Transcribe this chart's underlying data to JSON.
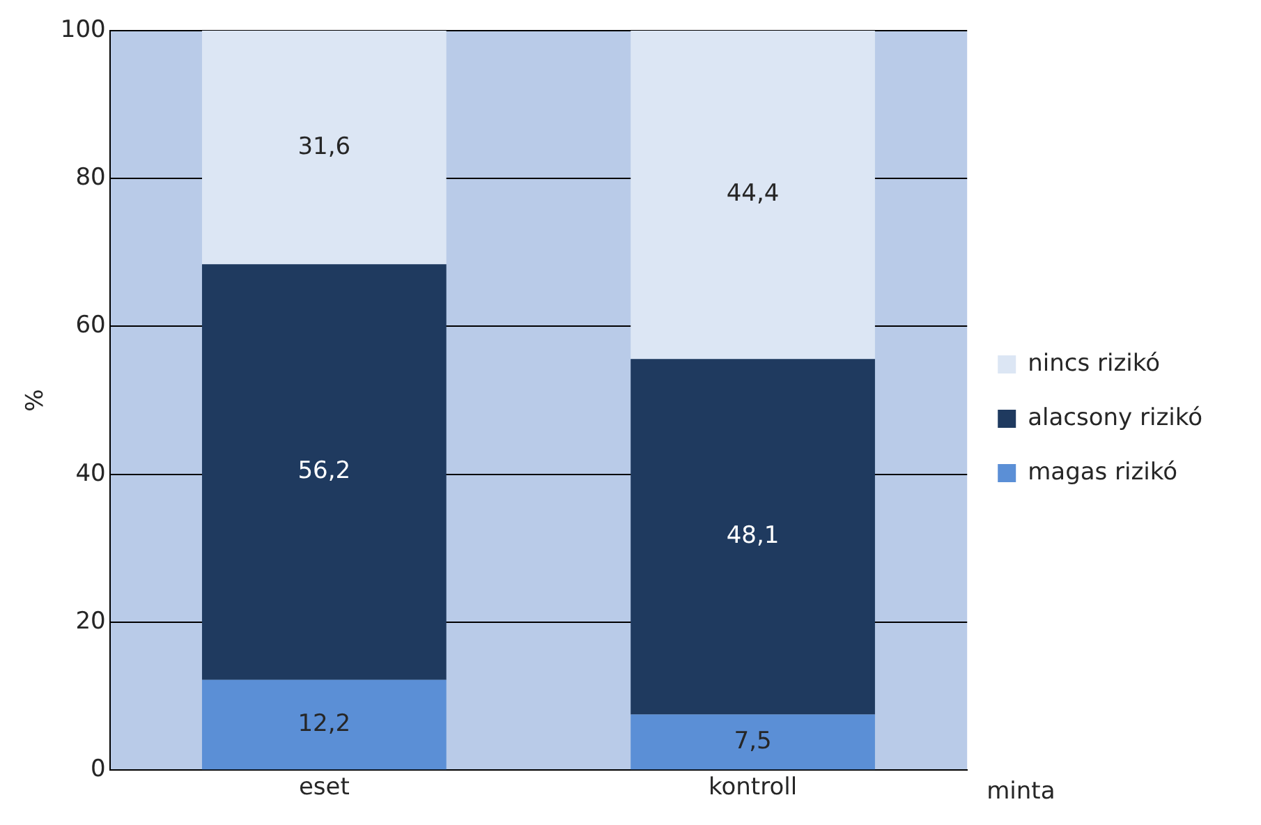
{
  "chart_data": {
    "type": "bar",
    "stacked": true,
    "categories": [
      "eset",
      "kontroll"
    ],
    "xlabel": "minta",
    "ylabel": "%",
    "ylim": [
      0,
      100
    ],
    "yticks": [
      0,
      20,
      40,
      60,
      80,
      100
    ],
    "grid": "y",
    "legend": "right",
    "series": [
      {
        "name": "magas rizikó",
        "color": "#5b8fd6",
        "values": [
          12.2,
          7.5
        ],
        "value_labels": [
          "12,2",
          "7,5"
        ]
      },
      {
        "name": "alacsony rizikó",
        "color": "#1f3a5f",
        "values": [
          56.2,
          48.1
        ],
        "value_labels": [
          "56,2",
          "48,1"
        ]
      },
      {
        "name": "nincs rizikó",
        "color": "#dce6f4",
        "values": [
          31.6,
          44.4
        ],
        "value_labels": [
          "31,6",
          "44,4"
        ]
      }
    ]
  }
}
